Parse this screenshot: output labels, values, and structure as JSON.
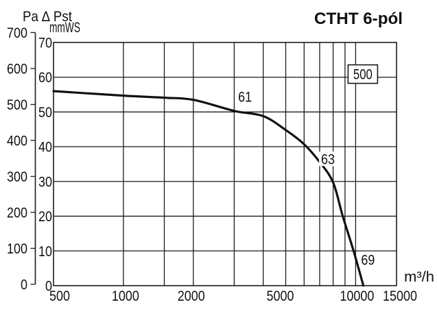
{
  "title": "CTHT 6-pól",
  "colors": {
    "line": "#111111",
    "grid": "#1a1a1a",
    "text": "#111111",
    "background": "#ffffff"
  },
  "chart_data": {
    "type": "line",
    "title": "CTHT 6-pól",
    "x_axis": {
      "label": "m³/h",
      "scale": "log",
      "min": 500,
      "max": 15000,
      "tick_labels": [
        500,
        1000,
        2000,
        5000,
        10000,
        15000
      ],
      "gridlines": [
        1000,
        1500,
        2000,
        3000,
        4000,
        5000,
        6000,
        7000,
        8000,
        9000,
        10000
      ]
    },
    "y_axis_pa": {
      "label": "Pa ∆ Pst",
      "min": 0,
      "max": 700,
      "ticks": [
        700,
        600,
        500,
        400,
        300,
        200,
        100,
        0
      ]
    },
    "y_axis_mmws": {
      "label": "mmWS",
      "min": 0,
      "max": 70,
      "ticks": [
        70,
        60,
        50,
        40,
        30,
        20,
        10,
        0
      ],
      "gridline_step": 10
    },
    "grid": true,
    "series": [
      {
        "name": "CTHT 500 6-pól fan curve",
        "points_flow_mmws_pa": [
          [
            500,
            56.0,
            549
          ],
          [
            1000,
            54.7,
            536
          ],
          [
            1500,
            54.1,
            531
          ],
          [
            2000,
            53.5,
            525
          ],
          [
            3000,
            50.3,
            493
          ],
          [
            4000,
            48.8,
            479
          ],
          [
            5000,
            44.8,
            439
          ],
          [
            6000,
            40.7,
            399
          ],
          [
            7000,
            35.6,
            349
          ],
          [
            8000,
            29.7,
            291
          ],
          [
            8800,
            20.0,
            196
          ],
          [
            9800,
            10.0,
            98
          ],
          [
            10800,
            0.0,
            0
          ]
        ]
      }
    ],
    "annotations": [
      {
        "text": "61",
        "flow": 3340,
        "mmws": 54.4
      },
      {
        "text": "63",
        "flow": 7600,
        "mmws": 36.5
      },
      {
        "text": "69",
        "flow": 11300,
        "mmws": 7.5
      }
    ],
    "size_badge": {
      "text": "500",
      "flow": 10740,
      "mmws": 60.9
    }
  }
}
